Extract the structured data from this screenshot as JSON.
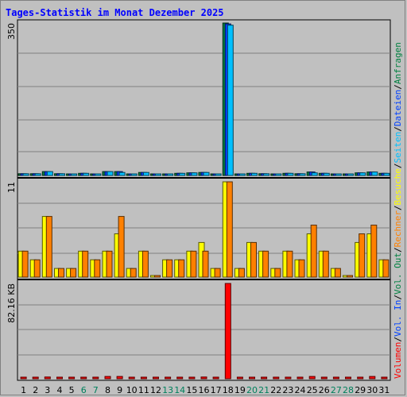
{
  "chart_data": {
    "type": "bar",
    "title": "Tages-Statistik im Monat Dezember 2025",
    "days": [
      "1",
      "2",
      "3",
      "4",
      "5",
      "6",
      "7",
      "8",
      "9",
      "10",
      "11",
      "12",
      "13",
      "14",
      "15",
      "16",
      "17",
      "18",
      "19",
      "20",
      "21",
      "22",
      "23",
      "24",
      "25",
      "26",
      "27",
      "28",
      "29",
      "30",
      "31"
    ],
    "weekend_days": [
      "6",
      "7",
      "13",
      "14",
      "20",
      "21",
      "27",
      "28"
    ],
    "panels": [
      {
        "name": "requests",
        "y_max_label": "350",
        "ylim": [
          0,
          350
        ],
        "series": [
          {
            "name": "Anfragen",
            "color": "#008040",
            "values": [
              4,
              4,
              9,
              4,
              2,
              5,
              3,
              9,
              9,
              2,
              7,
              0,
              3,
              5,
              6,
              7,
              3,
              350,
              2,
              5,
              4,
              3,
              5,
              4,
              8,
              5,
              3,
              0,
              6,
              8,
              5
            ]
          },
          {
            "name": "Dateien",
            "color": "#0040ff",
            "values": [
              4,
              4,
              9,
              4,
              2,
              5,
              3,
              9,
              9,
              2,
              7,
              0,
              3,
              5,
              6,
              7,
              3,
              348,
              2,
              5,
              4,
              3,
              5,
              4,
              8,
              5,
              3,
              0,
              6,
              8,
              5
            ]
          },
          {
            "name": "Seiten",
            "color": "#00c0ff",
            "values": [
              4,
              4,
              9,
              4,
              2,
              5,
              3,
              9,
              7,
              2,
              7,
              0,
              3,
              5,
              6,
              7,
              3,
              345,
              2,
              5,
              4,
              3,
              5,
              4,
              6,
              5,
              3,
              0,
              6,
              8,
              5
            ]
          }
        ]
      },
      {
        "name": "visits",
        "y_max_label": "11",
        "ylim": [
          0,
          11
        ],
        "series": [
          {
            "name": "Besuche",
            "color": "#ffff00",
            "values": [
              3,
              2,
              7,
              1,
              1,
              3,
              2,
              3,
              5,
              1,
              3,
              0,
              2,
              2,
              3,
              4,
              1,
              11,
              1,
              4,
              3,
              1,
              3,
              2,
              5,
              3,
              1,
              0,
              4,
              5,
              2
            ]
          },
          {
            "name": "Rechner",
            "color": "#ff8000",
            "values": [
              3,
              2,
              7,
              1,
              1,
              3,
              2,
              3,
              7,
              1,
              3,
              0,
              2,
              2,
              3,
              3,
              1,
              11,
              1,
              4,
              3,
              1,
              3,
              2,
              6,
              3,
              1,
              0,
              5,
              6,
              2
            ]
          }
        ]
      },
      {
        "name": "volume",
        "y_max_label": "82.16 KB",
        "ylim": [
          0,
          82.16
        ],
        "series": [
          {
            "name": "Volumen",
            "color": "#ff0000",
            "values": [
              0.8,
              0.8,
              1.5,
              0.8,
              0.5,
              1.2,
              0.8,
              2.0,
              2.0,
              0.5,
              1.0,
              0,
              0.8,
              1.2,
              1.2,
              1.5,
              0.8,
              82.16,
              0.5,
              1.2,
              1.2,
              0.8,
              1.2,
              1.2,
              2.0,
              1.2,
              0.8,
              0,
              1.2,
              2.0,
              1.2
            ]
          }
        ]
      }
    ],
    "legend_right": [
      {
        "label": "Volumen",
        "color": "#ff0000"
      },
      {
        "label": "Vol. In",
        "color": "#0040ff"
      },
      {
        "label": "Vol. Out",
        "color": "#008040"
      },
      {
        "label": "Rechner",
        "color": "#ff8000"
      },
      {
        "label": "Besuche",
        "color": "#ffff00"
      },
      {
        "label": "Seiten",
        "color": "#00c0ff"
      },
      {
        "label": "Dateien",
        "color": "#0040ff"
      },
      {
        "label": "Anfragen",
        "color": "#008040"
      }
    ],
    "colors": {
      "title": "#0000ff",
      "weekday": "#000000",
      "weekend": "#00805c",
      "grid": "#808080",
      "panel_bg": "#c0c0c0"
    },
    "grid": true
  }
}
